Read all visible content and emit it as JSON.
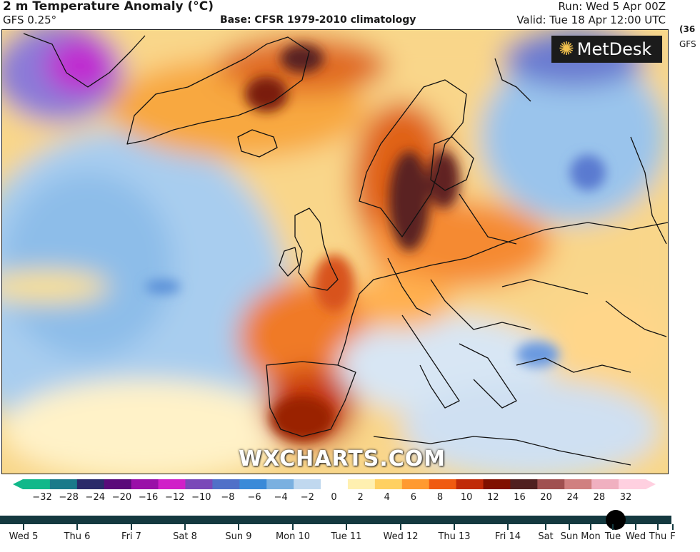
{
  "header": {
    "title": "2 m Temperature Anomaly (°C)",
    "model": "GFS 0.25°",
    "base": "Base: CFSR 1979-2010 climatology",
    "run": "Run: Wed 5 Apr 00Z",
    "valid": "Valid: Tue 18 Apr 12:00 UTC"
  },
  "side": {
    "code": "(36",
    "model": "GFS"
  },
  "logo": {
    "text": "MetDesk",
    "icon": "metdesk-star-icon"
  },
  "watermark": "WXCHARTS.COM",
  "colorbar": {
    "ticks": [
      "−32",
      "−28",
      "−24",
      "−20",
      "−16",
      "−12",
      "−10",
      "−8",
      "−6",
      "−4",
      "−2",
      "0",
      "2",
      "4",
      "6",
      "8",
      "10",
      "12",
      "16",
      "20",
      "24",
      "28",
      "32"
    ],
    "colors": [
      "#11b88a",
      "#1a7a8a",
      "#2a2a6a",
      "#5a0a7a",
      "#9a10a8",
      "#d020c8",
      "#7a48b8",
      "#5070c8",
      "#3a8ad8",
      "#7ab0e0",
      "#c0d8ef",
      "#ffffff",
      "#fff0b0",
      "#ffd060",
      "#ff9a30",
      "#f05a10",
      "#c02a08",
      "#801000",
      "#502020",
      "#a05050",
      "#d08080",
      "#f0b0c0",
      "#ffd0e0"
    ]
  },
  "timeline": {
    "days": [
      "Wed 5",
      "Thu 6",
      "Fri 7",
      "Sat 8",
      "Sun 9",
      "Mon 10",
      "Tue 11",
      "Wed 12",
      "Thu 13",
      "Fri 14",
      "Sat",
      "Sun",
      "Mon",
      "Tue",
      "Wed",
      "Thu",
      "F"
    ],
    "selected_index": 13
  }
}
